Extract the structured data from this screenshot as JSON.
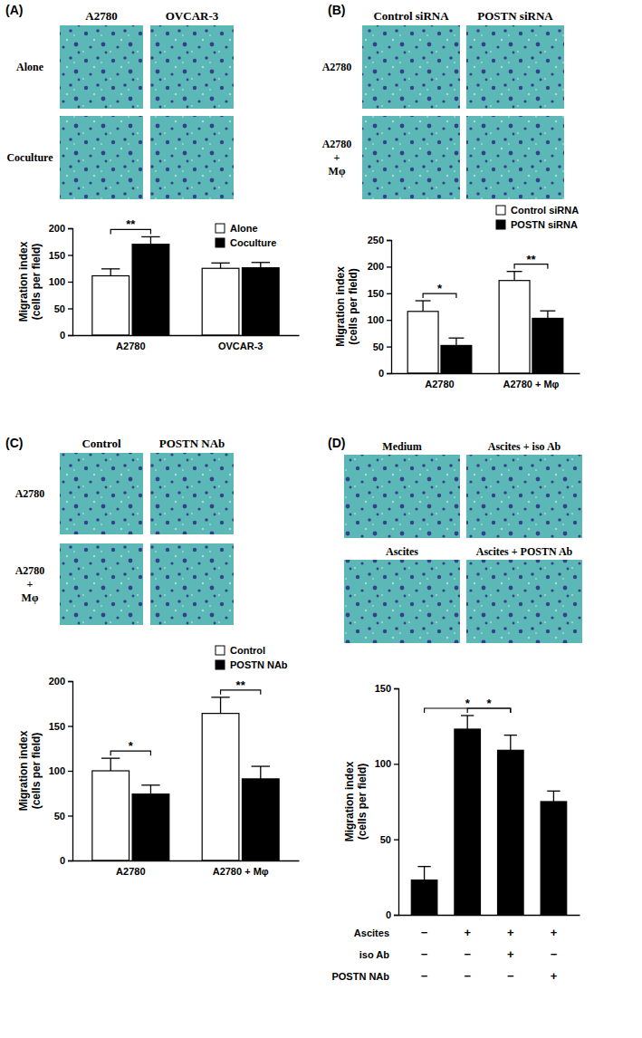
{
  "chart_data": [
    {
      "type": "bar",
      "panel": "(A)",
      "image_columns": [
        "A2780",
        "OVCAR-3"
      ],
      "image_rows": [
        [
          "Alone"
        ],
        [
          "Coculture"
        ]
      ],
      "categories": [
        "A2780",
        "OVCAR-3"
      ],
      "series": [
        {
          "name": "Alone",
          "color": "#ffffff",
          "values": [
            111,
            125
          ],
          "errors": [
            13,
            10
          ]
        },
        {
          "name": "Coculture",
          "color": "#000000",
          "values": [
            170,
            126
          ],
          "errors": [
            14,
            10
          ]
        }
      ],
      "y_label": [
        "Migration index",
        "(cells per field)"
      ],
      "ylim": [
        0,
        200
      ],
      "yticks": [
        0,
        50,
        100,
        150,
        200
      ],
      "legend": "upper right",
      "significance": [
        "**",
        null
      ]
    },
    {
      "type": "bar",
      "panel": "(B)",
      "image_columns": [
        "Control siRNA",
        "POSTN siRNA"
      ],
      "image_rows": [
        [
          "A2780"
        ],
        [
          "A2780",
          "+",
          "Mφ"
        ]
      ],
      "categories": [
        "A2780",
        "A2780 + Mφ"
      ],
      "series": [
        {
          "name": "Control siRNA",
          "color": "#ffffff",
          "values": [
            116,
            174
          ],
          "errors": [
            20,
            17
          ]
        },
        {
          "name": "POSTN siRNA",
          "color": "#000000",
          "values": [
            52,
            103
          ],
          "errors": [
            14,
            14
          ]
        }
      ],
      "y_label": [
        "Migration index",
        "(cells per field)"
      ],
      "ylim": [
        0,
        250
      ],
      "yticks": [
        0,
        50,
        100,
        150,
        200,
        250
      ],
      "legend": "upper right",
      "significance": [
        "*",
        "**"
      ]
    },
    {
      "type": "bar",
      "panel": "(C)",
      "image_columns": [
        "Control",
        "POSTN NAb"
      ],
      "image_rows": [
        [
          "A2780"
        ],
        [
          "A2780",
          "+",
          "Mφ"
        ]
      ],
      "categories": [
        "A2780",
        "A2780 + Mφ"
      ],
      "series": [
        {
          "name": "Control",
          "color": "#ffffff",
          "values": [
            100,
            164
          ],
          "errors": [
            14,
            18
          ]
        },
        {
          "name": "POSTN NAb",
          "color": "#000000",
          "values": [
            74,
            91
          ],
          "errors": [
            10,
            14
          ]
        }
      ],
      "y_label": [
        "Migration index",
        "(cells per field)"
      ],
      "ylim": [
        0,
        200
      ],
      "yticks": [
        0,
        50,
        100,
        150,
        200
      ],
      "legend": "upper right",
      "significance": [
        "*",
        "**"
      ]
    },
    {
      "type": "bar",
      "panel": "(D)",
      "image_titles": [
        [
          "Medium",
          "Ascites + iso Ab"
        ],
        [
          "Ascites",
          "Ascites + POSTN Ab"
        ]
      ],
      "categories": [
        null,
        null,
        null,
        null
      ],
      "values": [
        23,
        123,
        109,
        75
      ],
      "errors": [
        9,
        9,
        10,
        7
      ],
      "color": "#000000",
      "y_label": [
        "Migration index",
        "(cells per field)"
      ],
      "ylim": [
        0,
        150
      ],
      "yticks": [
        0,
        50,
        100,
        150
      ],
      "conditions": [
        {
          "label": "Ascites",
          "signs": [
            "−",
            "+",
            "+",
            "+"
          ]
        },
        {
          "label": "iso Ab",
          "signs": [
            "−",
            "−",
            "+",
            "−"
          ]
        },
        {
          "label": "POSTN NAb",
          "signs": [
            "−",
            "−",
            "−",
            "+"
          ]
        }
      ],
      "significance": [
        {
          "label": "*",
          "from": 0,
          "to": 2
        },
        {
          "label": "*",
          "from": 1,
          "to": 2
        }
      ]
    }
  ]
}
